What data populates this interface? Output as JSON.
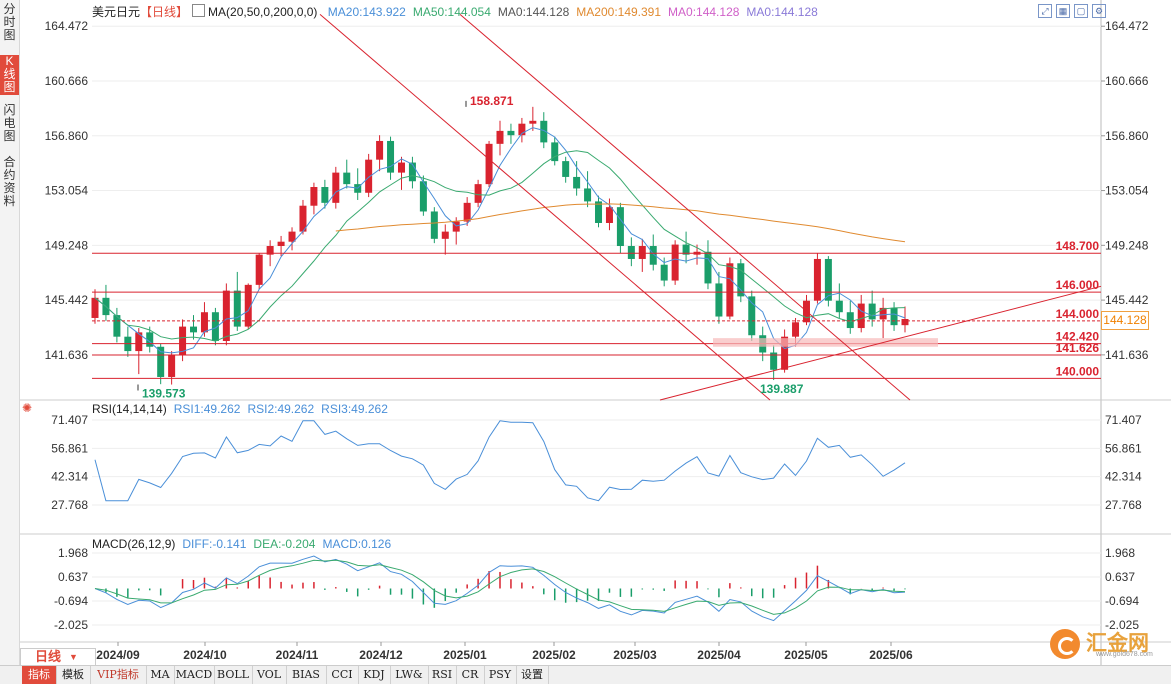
{
  "sidebar": {
    "items": [
      {
        "label": "分时图"
      },
      {
        "label": "K线图"
      },
      {
        "label": "闪电图"
      },
      {
        "label": "合约资料"
      }
    ]
  },
  "header": {
    "symbol": "美元日元",
    "period_tag": "【日线】",
    "ma_params": "MA(20,50,0,200,0,0)",
    "ma_items": [
      {
        "label": "MA20:143.922",
        "color": "#4a8fd8"
      },
      {
        "label": "MA50:144.054",
        "color": "#3aaa70"
      },
      {
        "label": "MA0:144.128",
        "color": "#555555"
      },
      {
        "label": "MA200:149.391",
        "color": "#e08a30"
      },
      {
        "label": "MA0:144.128",
        "color": "#d060c8"
      },
      {
        "label": "MA0:144.128",
        "color": "#8a7ad8"
      }
    ]
  },
  "toolbar": {
    "icons": [
      "fullscreen-icon",
      "grid-icon",
      "box-icon",
      "settings-icon"
    ]
  },
  "main_axis": {
    "ticks": [
      "164.472",
      "160.666",
      "156.860",
      "153.054",
      "149.248",
      "145.442",
      "141.636"
    ]
  },
  "price_levels": [
    {
      "label": "148.700",
      "value": 148.7
    },
    {
      "label": "146.000",
      "value": 146.0
    },
    {
      "label": "144.000",
      "value": 144.0,
      "dashed": true
    },
    {
      "label": "142.420",
      "value": 142.42
    },
    {
      "label": "141.626",
      "value": 141.626
    },
    {
      "label": "140.000",
      "value": 140.0
    }
  ],
  "current_price": "144.128",
  "annotations": {
    "high": "158.871",
    "low1": "139.573",
    "low2": "139.887"
  },
  "rsi": {
    "title": "RSI(14,14,14)",
    "items": [
      {
        "label": "RSI1:49.262",
        "color": "#4a8fd8"
      },
      {
        "label": "RSI2:49.262",
        "color": "#4a8fd8"
      },
      {
        "label": "RSI3:49.262",
        "color": "#4a8fd8"
      }
    ],
    "ticks": [
      "71.407",
      "56.861",
      "42.314",
      "27.768"
    ]
  },
  "macd": {
    "title": "MACD(26,12,9)",
    "items": [
      {
        "label": "DIFF:-0.141",
        "color": "#4a8fd8"
      },
      {
        "label": "DEA:-0.204",
        "color": "#3aaa70"
      },
      {
        "label": "MACD:0.126",
        "color": "#4a8fd8"
      }
    ],
    "ticks": [
      "1.968",
      "0.637",
      "-0.694",
      "-2.025"
    ]
  },
  "x_axis": {
    "labels": [
      "2024/09",
      "2024/10",
      "2024/11",
      "2024/12",
      "2025/01",
      "2025/02",
      "2025/03",
      "2025/04",
      "2025/05",
      "2025/06"
    ]
  },
  "period_button": {
    "label": "日线"
  },
  "bottom_tabs": [
    {
      "label": "指标"
    },
    {
      "label": "模板"
    },
    {
      "label": "VIP指标"
    },
    {
      "label": "MA"
    },
    {
      "label": "MACD"
    },
    {
      "label": "BOLL"
    },
    {
      "label": "VOL"
    },
    {
      "label": "BIAS"
    },
    {
      "label": "CCI"
    },
    {
      "label": "KDJ"
    },
    {
      "label": "LW&"
    },
    {
      "label": "RSI"
    },
    {
      "label": "CR"
    },
    {
      "label": "PSY"
    },
    {
      "label": "设置"
    }
  ],
  "logo": {
    "text": "汇金网",
    "subtext": "www.gold678.com"
  },
  "colors": {
    "up": "#d9232f",
    "down": "#1a9e6a",
    "ma20": "#4a8fd8",
    "ma50": "#3aaa70",
    "ma200": "#e08a30",
    "level": "#d9232f",
    "brand": "#e14b3b"
  },
  "chart_data": {
    "type": "candlestick",
    "title": "美元日元 日线",
    "x_range": [
      "2024-08-27",
      "2025-06-10"
    ],
    "ylim": [
      138.5,
      165.6
    ],
    "candles_ohlc": [
      [
        144.2,
        146.2,
        143.8,
        145.6
      ],
      [
        145.6,
        146.5,
        144.0,
        144.4
      ],
      [
        144.4,
        144.9,
        142.5,
        142.9
      ],
      [
        142.9,
        143.6,
        141.5,
        141.9
      ],
      [
        141.9,
        143.5,
        140.3,
        143.2
      ],
      [
        143.2,
        143.6,
        141.8,
        142.2
      ],
      [
        142.2,
        142.4,
        139.6,
        140.1
      ],
      [
        140.1,
        141.9,
        139.573,
        141.6
      ],
      [
        141.6,
        144.1,
        141.2,
        143.6
      ],
      [
        143.6,
        144.4,
        142.7,
        143.2
      ],
      [
        143.2,
        145.3,
        142.9,
        144.6
      ],
      [
        144.6,
        144.9,
        142.3,
        142.6
      ],
      [
        142.6,
        146.6,
        142.3,
        146.1
      ],
      [
        146.1,
        147.4,
        143.3,
        143.6
      ],
      [
        143.6,
        146.6,
        143.4,
        146.5
      ],
      [
        146.5,
        148.7,
        146.2,
        148.6
      ],
      [
        148.6,
        149.6,
        147.8,
        149.2
      ],
      [
        149.2,
        149.9,
        148.5,
        149.5
      ],
      [
        149.5,
        150.5,
        148.9,
        150.2
      ],
      [
        150.2,
        152.4,
        150.0,
        152.0
      ],
      [
        152.0,
        153.6,
        151.4,
        153.3
      ],
      [
        153.3,
        153.8,
        151.8,
        152.2
      ],
      [
        152.2,
        154.7,
        151.8,
        154.3
      ],
      [
        154.3,
        155.2,
        153.2,
        153.5
      ],
      [
        153.5,
        154.6,
        152.4,
        152.9
      ],
      [
        152.9,
        155.6,
        152.6,
        155.2
      ],
      [
        155.2,
        156.9,
        154.4,
        156.5
      ],
      [
        156.5,
        156.8,
        153.8,
        154.3
      ],
      [
        154.3,
        155.4,
        153.1,
        155.0
      ],
      [
        155.0,
        155.4,
        153.2,
        153.7
      ],
      [
        153.7,
        154.1,
        151.3,
        151.6
      ],
      [
        151.6,
        151.9,
        149.4,
        149.7
      ],
      [
        149.7,
        150.7,
        148.6,
        150.2
      ],
      [
        150.2,
        151.2,
        149.3,
        150.9
      ],
      [
        150.9,
        152.6,
        150.6,
        152.2
      ],
      [
        152.2,
        153.8,
        151.9,
        153.5
      ],
      [
        153.5,
        156.5,
        153.3,
        156.3
      ],
      [
        156.3,
        157.9,
        155.5,
        157.2
      ],
      [
        157.2,
        157.7,
        156.3,
        156.9
      ],
      [
        156.9,
        158.1,
        156.4,
        157.7
      ],
      [
        157.7,
        158.871,
        157.2,
        157.9
      ],
      [
        157.9,
        158.5,
        156.0,
        156.4
      ],
      [
        156.4,
        156.8,
        154.8,
        155.1
      ],
      [
        155.1,
        155.4,
        153.6,
        154.0
      ],
      [
        154.0,
        155.1,
        152.7,
        153.2
      ],
      [
        153.2,
        154.4,
        151.9,
        152.3
      ],
      [
        152.3,
        152.7,
        150.5,
        150.8
      ],
      [
        150.8,
        152.5,
        150.3,
        151.9
      ],
      [
        151.9,
        152.2,
        148.7,
        149.2
      ],
      [
        149.2,
        149.8,
        147.8,
        148.3
      ],
      [
        148.3,
        149.7,
        147.4,
        149.2
      ],
      [
        149.2,
        150.0,
        147.5,
        147.9
      ],
      [
        147.9,
        148.4,
        146.4,
        146.8
      ],
      [
        146.8,
        149.6,
        146.5,
        149.3
      ],
      [
        149.3,
        150.2,
        148.0,
        148.6
      ],
      [
        148.6,
        149.3,
        147.9,
        148.8
      ],
      [
        148.8,
        149.6,
        146.2,
        146.6
      ],
      [
        146.6,
        147.4,
        143.8,
        144.3
      ],
      [
        144.3,
        148.4,
        144.1,
        148.0
      ],
      [
        148.0,
        148.3,
        145.3,
        145.7
      ],
      [
        145.7,
        146.1,
        142.6,
        143.0
      ],
      [
        143.0,
        143.6,
        141.2,
        141.8
      ],
      [
        141.8,
        142.3,
        139.887,
        140.6
      ],
      [
        140.6,
        143.4,
        140.4,
        142.9
      ],
      [
        142.9,
        144.2,
        142.2,
        143.9
      ],
      [
        143.9,
        145.8,
        143.7,
        145.4
      ],
      [
        145.4,
        148.7,
        145.2,
        148.3
      ],
      [
        148.3,
        148.5,
        145.0,
        145.4
      ],
      [
        145.4,
        146.6,
        144.2,
        144.6
      ],
      [
        144.6,
        145.4,
        143.1,
        143.5
      ],
      [
        143.5,
        145.8,
        143.2,
        145.2
      ],
      [
        145.2,
        146.1,
        143.6,
        144.1
      ],
      [
        144.1,
        145.6,
        142.8,
        144.9
      ],
      [
        144.9,
        145.3,
        143.3,
        143.7
      ],
      [
        143.7,
        145.0,
        143.2,
        144.128
      ]
    ],
    "levels": [
      148.7,
      146.0,
      144.0,
      142.42,
      141.626,
      140.0
    ],
    "rsi_range": [
      27.768,
      71.407
    ],
    "macd_range": [
      -2.025,
      1.968
    ],
    "series": [
      {
        "name": "MA20",
        "value": 143.922
      },
      {
        "name": "MA50",
        "value": 144.054
      },
      {
        "name": "MA200",
        "value": 149.391
      }
    ]
  }
}
